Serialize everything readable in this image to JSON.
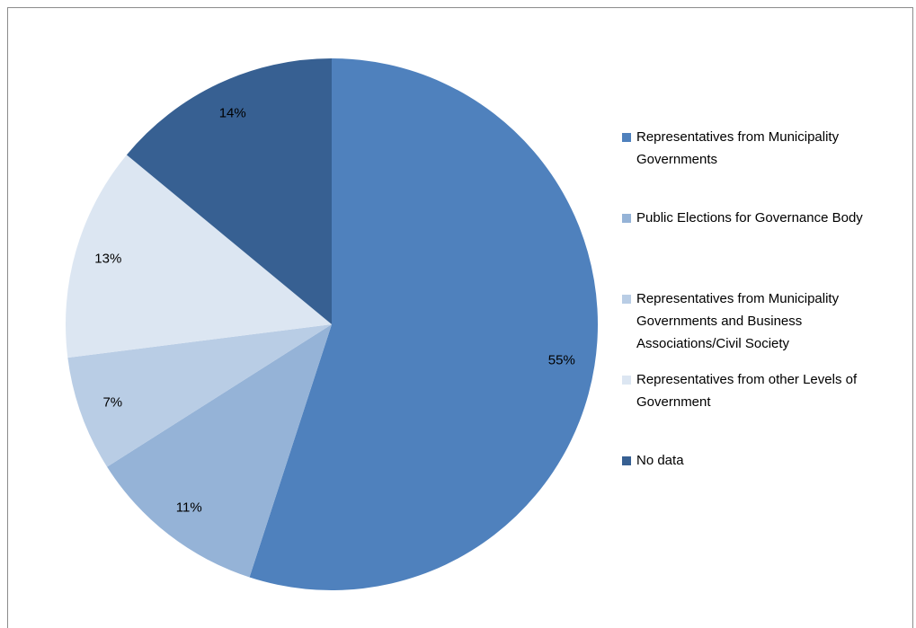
{
  "chart_data": {
    "type": "pie",
    "categories": [
      "Representatives from Municipality Governments",
      "Public Elections for Governance Body",
      "Representatives from Municipality Governments and Business Associations/Civil Society",
      "Representatives from other Levels of Government",
      "No data"
    ],
    "values": [
      55,
      11,
      7,
      13,
      14
    ],
    "value_labels": [
      "55%",
      "11%",
      "7%",
      "13%",
      "14%"
    ],
    "colors": [
      "#4f81bd",
      "#95b3d7",
      "#b9cde5",
      "#dce6f2",
      "#376092"
    ],
    "legend": "right"
  }
}
